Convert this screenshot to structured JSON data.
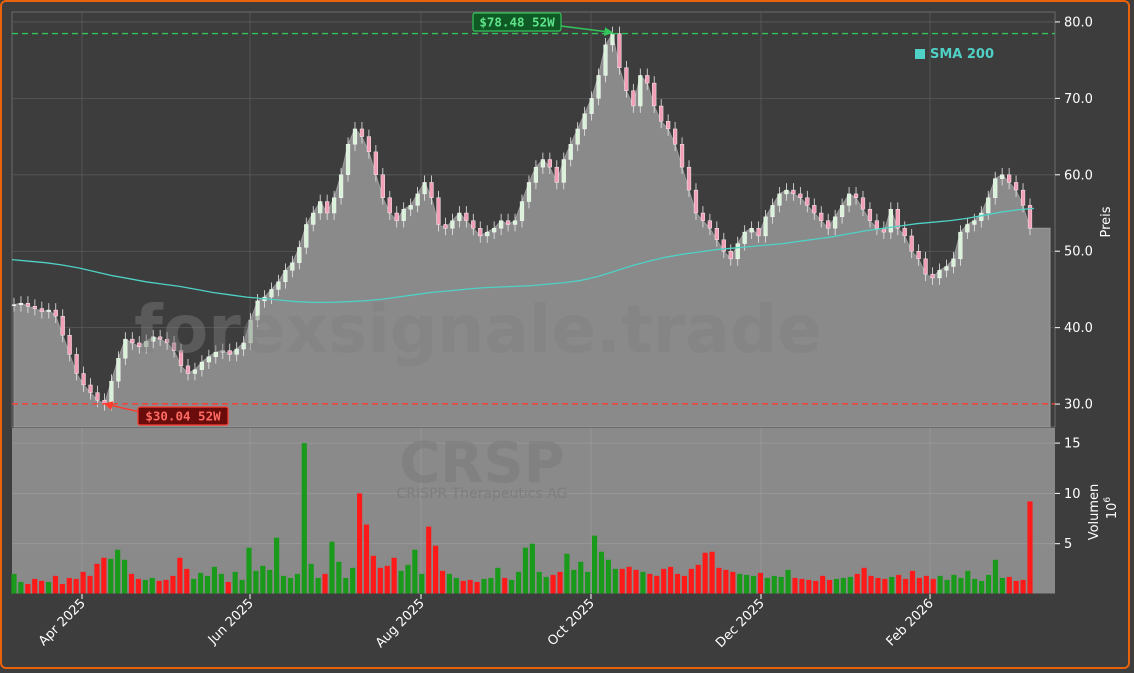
{
  "colors": {
    "background": "#3d3d3d",
    "frame": "#e8620c",
    "price_area": "#8a8a8a",
    "up": "#1a9a1a",
    "down": "#ff1a1a",
    "sma": "#4fd1c5",
    "high_line": "#33c45a",
    "low_line": "#ff3b30",
    "grid": "#5a5a5a"
  },
  "watermark": {
    "site": "forexsignale.trade",
    "ticker": "CRSP",
    "company": "CRISPR Therapeutics AG"
  },
  "legend": {
    "label": "SMA 200",
    "position": "top-right"
  },
  "annotations": {
    "high": {
      "label": "$78.48 52W",
      "value": 78.48
    },
    "low": {
      "label": "$30.04 52W",
      "value": 30.04
    }
  },
  "chart_data": [
    {
      "type": "area",
      "ylabel": "Preis",
      "ylim": [
        27.0,
        81.3
      ],
      "yticks": [
        "30.0",
        "40.0",
        "50.0",
        "60.0",
        "70.0",
        "80.0"
      ],
      "xticks": [
        "Apr 2025",
        "Jun 2025",
        "Aug 2025",
        "Oct 2025",
        "Dec 2025",
        "Feb 2026"
      ],
      "series": [
        {
          "values": [
            43.0,
            43.2,
            42.8,
            42.5,
            42.1,
            42.3,
            41.5,
            39.0,
            36.5,
            34.0,
            32.5,
            31.5,
            30.5,
            30.04,
            33.0,
            36.0,
            38.5,
            38.0,
            37.5,
            38.2,
            38.8,
            38.5,
            38.0,
            37.0,
            35.0,
            34.0,
            34.5,
            35.5,
            36.2,
            36.8,
            37.0,
            36.5,
            37.2,
            38.0,
            41.0,
            43.5,
            44.0,
            45.0,
            46.0,
            47.5,
            48.5,
            50.5,
            53.5,
            55.0,
            56.5,
            55.0,
            57.0,
            60.0,
            64.0,
            66.0,
            65.0,
            63.0,
            60.0,
            57.0,
            55.0,
            54.0,
            55.5,
            56.0,
            57.5,
            59.0,
            57.0,
            53.5,
            53.0,
            54.0,
            55.0,
            54.0,
            53.0,
            52.0,
            52.5,
            53.0,
            54.0,
            53.5,
            54.0,
            56.5,
            59.0,
            61.0,
            62.0,
            61.0,
            59.0,
            62.0,
            64.0,
            66.0,
            68.0,
            70.0,
            73.0,
            77.0,
            78.48,
            74.0,
            71.0,
            69.0,
            73.0,
            72.0,
            69.0,
            67.0,
            66.0,
            64.0,
            61.0,
            58.0,
            55.0,
            54.0,
            53.0,
            51.5,
            50.0,
            49.0,
            51.0,
            52.5,
            53.0,
            52.0,
            54.5,
            56.0,
            57.5,
            58.0,
            57.5,
            57.0,
            56.0,
            55.0,
            54.0,
            53.0,
            54.5,
            56.0,
            57.5,
            57.0,
            55.5,
            54.0,
            53.0,
            52.5,
            55.5,
            53.0,
            52.0,
            50.0,
            49.0,
            47.0,
            46.5,
            47.5,
            48.0,
            49.0,
            52.5,
            53.5,
            54.0,
            55.0,
            57.0,
            59.5,
            60.0,
            59.0,
            58.0,
            56.0,
            53.0
          ]
        },
        {
          "name": "SMA 200",
          "values": [
            48.9,
            48.7,
            48.5,
            48.2,
            47.8,
            47.3,
            46.8,
            46.4,
            46.0,
            45.7,
            45.4,
            45.0,
            44.6,
            44.3,
            44.0,
            43.8,
            43.6,
            43.4,
            43.3,
            43.3,
            43.4,
            43.5,
            43.7,
            44.0,
            44.3,
            44.6,
            44.8,
            45.0,
            45.2,
            45.3,
            45.4,
            45.5,
            45.7,
            45.9,
            46.2,
            46.7,
            47.4,
            48.1,
            48.7,
            49.2,
            49.6,
            49.9,
            50.2,
            50.4,
            50.6,
            50.8,
            51.0,
            51.3,
            51.6,
            51.9,
            52.3,
            52.7,
            53.0,
            53.3,
            53.6,
            53.8,
            54.0,
            54.3,
            54.7,
            55.1,
            55.4,
            55.6
          ]
        }
      ]
    },
    {
      "type": "bar",
      "ylabel": "Volumen",
      "yunit": "10",
      "yunit_exp": "6",
      "ylim": [
        0,
        16.5
      ],
      "yticks": [
        "5",
        "10",
        "15"
      ],
      "series": [
        {
          "name": "volume",
          "values": [
            2.0,
            1.2,
            1.0,
            1.5,
            1.3,
            1.2,
            1.8,
            1.0,
            1.6,
            1.5,
            2.2,
            1.8,
            3.0,
            3.6,
            3.5,
            4.4,
            3.4,
            2.0,
            1.5,
            1.4,
            1.6,
            1.3,
            1.4,
            1.8,
            3.6,
            2.5,
            1.5,
            2.1,
            1.8,
            2.7,
            2.0,
            1.2,
            2.2,
            1.4,
            4.6,
            2.3,
            2.8,
            2.4,
            5.6,
            1.8,
            1.6,
            2.0,
            15.0,
            3.0,
            1.6,
            2.0,
            5.2,
            3.2,
            1.6,
            2.6,
            10.0,
            6.9,
            3.8,
            2.6,
            2.8,
            3.6,
            2.3,
            2.9,
            4.4,
            2.0,
            6.7,
            4.8,
            2.3,
            2.0,
            1.6,
            1.3,
            1.4,
            1.2,
            1.5,
            1.6,
            2.6,
            1.6,
            1.4,
            2.2,
            4.6,
            5.0,
            2.2,
            1.7,
            1.9,
            2.2,
            4.0,
            2.4,
            3.2,
            2.2,
            5.8,
            4.2,
            3.4,
            2.5,
            2.5,
            2.7,
            2.4,
            2.2,
            2.0,
            1.8,
            2.5,
            2.7,
            2.0,
            1.8,
            2.5,
            2.9,
            4.1,
            4.2,
            2.6,
            2.4,
            2.2,
            2.0,
            1.9,
            1.8,
            2.1,
            1.6,
            1.8,
            1.7,
            2.4,
            1.6,
            1.5,
            1.4,
            1.3,
            1.8,
            1.4,
            1.5,
            1.6,
            1.7,
            2.0,
            2.6,
            1.8,
            1.6,
            1.5,
            1.7,
            1.9,
            1.5,
            2.3,
            1.6,
            1.8,
            1.5,
            1.8,
            1.4,
            1.9,
            1.6,
            2.3,
            1.5,
            1.3,
            1.9,
            3.4,
            1.6,
            1.7,
            1.3,
            1.4,
            9.2
          ]
        }
      ]
    }
  ]
}
